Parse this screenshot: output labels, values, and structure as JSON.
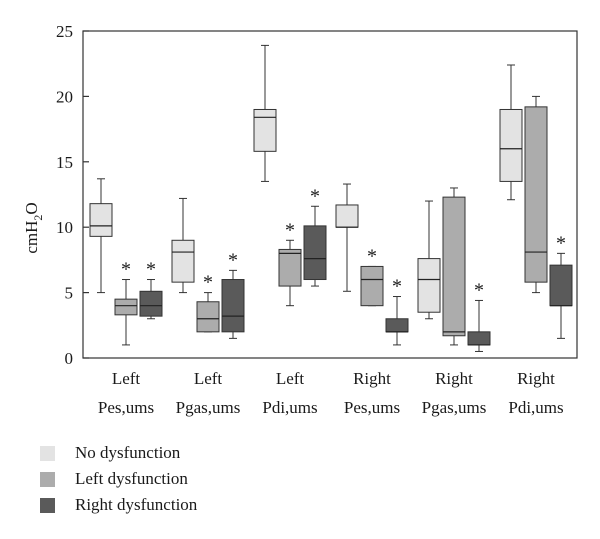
{
  "chart_data": {
    "type": "box",
    "ylabel": "cmH2O",
    "ylabel_parts": {
      "base": "cmH",
      "sub": "2",
      "tail": "O"
    },
    "ylim": [
      0,
      25
    ],
    "yticks": [
      0,
      5,
      10,
      15,
      20,
      25
    ],
    "categories": [
      [
        "Left",
        "Pes,ums"
      ],
      [
        "Left",
        "Pgas,ums"
      ],
      [
        "Left",
        "Pdi,ums"
      ],
      [
        "Right",
        "Pes,ums"
      ],
      [
        "Right",
        "Pgas,ums"
      ],
      [
        "Right",
        "Pdi,ums"
      ]
    ],
    "series": [
      {
        "name": "No dysfunction",
        "color": "#e3e3e3",
        "boxes": [
          {
            "min": 5.0,
            "q1": 9.3,
            "median": 10.1,
            "q3": 11.8,
            "max": 13.7
          },
          {
            "min": 5.0,
            "q1": 5.8,
            "median": 8.1,
            "q3": 9.0,
            "max": 12.2
          },
          {
            "min": 13.5,
            "q1": 15.8,
            "median": 18.4,
            "q3": 19.0,
            "max": 23.9
          },
          {
            "min": 5.1,
            "q1": 10.0,
            "median": 10.0,
            "q3": 11.7,
            "max": 13.3
          },
          {
            "min": 3.0,
            "q1": 3.5,
            "median": 6.0,
            "q3": 7.6,
            "max": 12.0
          },
          {
            "min": 12.1,
            "q1": 13.5,
            "median": 16.0,
            "q3": 19.0,
            "max": 22.4
          }
        ]
      },
      {
        "name": "Left dysfunction",
        "color": "#acacac",
        "boxes": [
          {
            "min": 1.0,
            "q1": 3.3,
            "median": 4.0,
            "q3": 4.5,
            "max": 6.0
          },
          {
            "min": 2.0,
            "q1": 2.0,
            "median": 3.0,
            "q3": 4.3,
            "max": 5.0
          },
          {
            "min": 4.0,
            "q1": 5.5,
            "median": 8.0,
            "q3": 8.3,
            "max": 9.0
          },
          {
            "min": 4.0,
            "q1": 4.0,
            "median": 6.0,
            "q3": 7.0,
            "max": 7.0
          },
          {
            "min": 1.0,
            "q1": 1.7,
            "median": 2.0,
            "q3": 12.3,
            "max": 13.0
          },
          {
            "min": 5.0,
            "q1": 5.8,
            "median": 8.1,
            "q3": 19.2,
            "max": 20.0
          }
        ]
      },
      {
        "name": "Right dysfunction",
        "color": "#5a5a5a",
        "boxes": [
          {
            "min": 3.0,
            "q1": 3.2,
            "median": 4.0,
            "q3": 5.1,
            "max": 6.0
          },
          {
            "min": 1.5,
            "q1": 2.0,
            "median": 3.2,
            "q3": 6.0,
            "max": 6.7
          },
          {
            "min": 5.5,
            "q1": 6.0,
            "median": 7.6,
            "q3": 10.1,
            "max": 11.6
          },
          {
            "min": 1.0,
            "q1": 2.0,
            "median": 2.0,
            "q3": 3.0,
            "max": 4.7
          },
          {
            "min": 0.5,
            "q1": 1.0,
            "median": 1.0,
            "q3": 2.0,
            "max": 4.4
          },
          {
            "min": 1.5,
            "q1": 4.0,
            "median": 4.0,
            "q3": 7.1,
            "max": 8.0
          }
        ]
      }
    ],
    "significance": [
      {
        "category": 0,
        "series": 1,
        "label": "*"
      },
      {
        "category": 0,
        "series": 2,
        "label": "*"
      },
      {
        "category": 1,
        "series": 1,
        "label": "*"
      },
      {
        "category": 1,
        "series": 2,
        "label": "*"
      },
      {
        "category": 2,
        "series": 1,
        "label": "*"
      },
      {
        "category": 2,
        "series": 2,
        "label": "*"
      },
      {
        "category": 3,
        "series": 1,
        "label": "*"
      },
      {
        "category": 3,
        "series": 2,
        "label": "*"
      },
      {
        "category": 4,
        "series": 2,
        "label": "*"
      },
      {
        "category": 5,
        "series": 2,
        "label": "*"
      }
    ],
    "grid": false,
    "legend_position": "bottom-left"
  }
}
